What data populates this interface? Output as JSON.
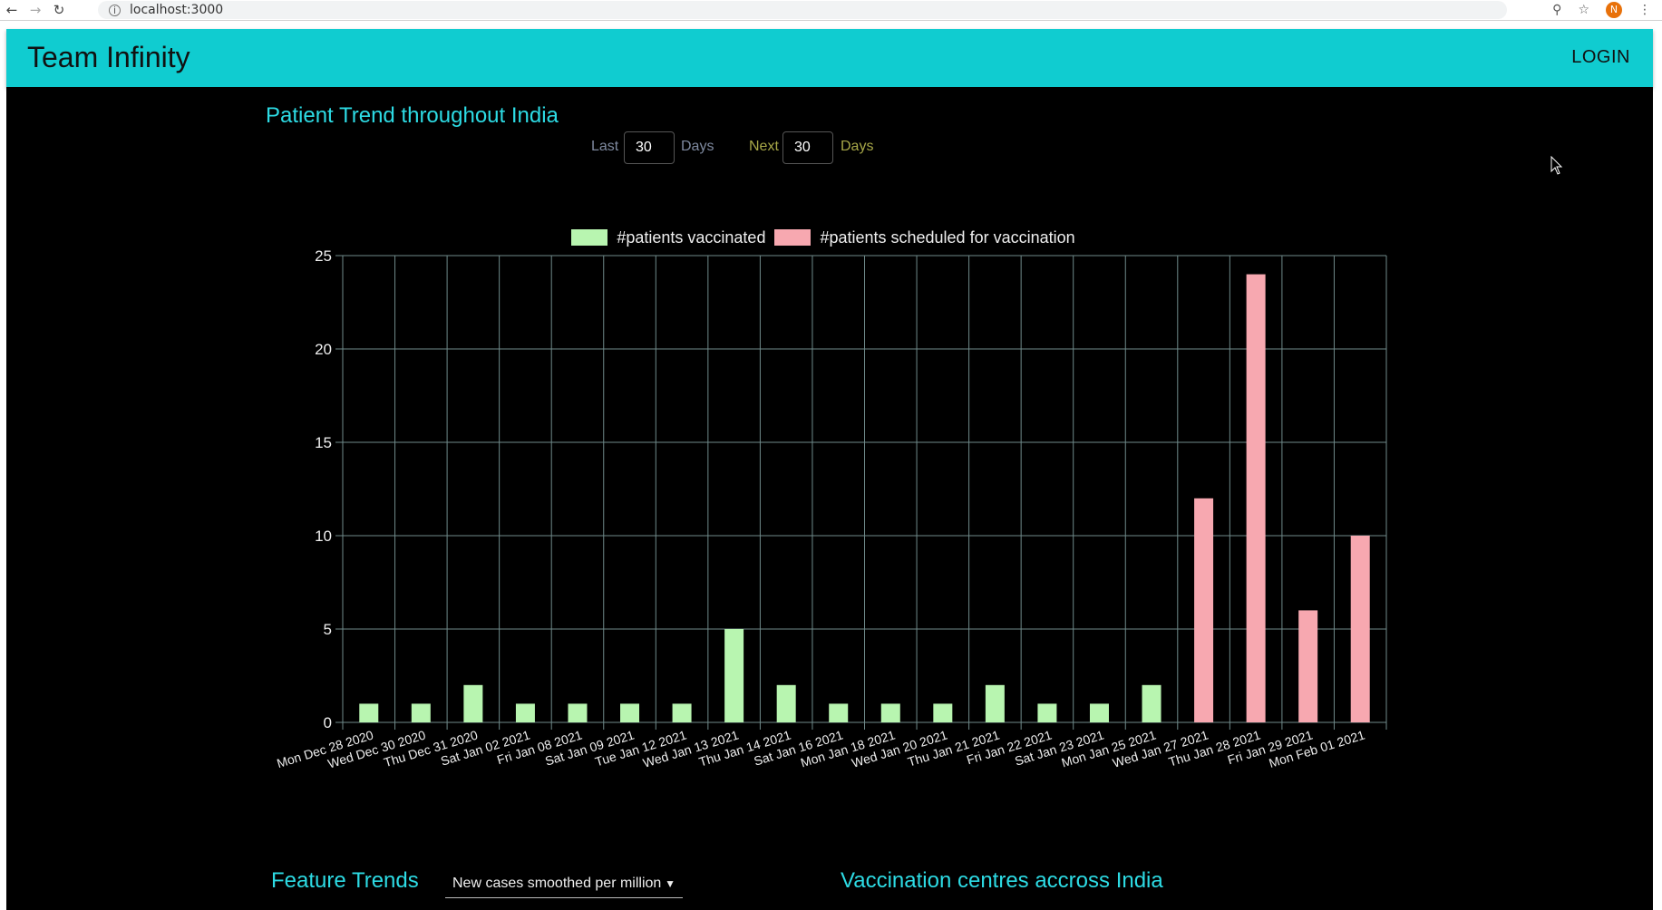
{
  "browser": {
    "url": "localhost:3000",
    "profile_initial": "N"
  },
  "header": {
    "brand": "Team Infinity",
    "login_label": "LOGIN"
  },
  "trend": {
    "title": "Patient Trend throughout India",
    "last_label": "Last",
    "last_value": "30",
    "last_unit": "Days",
    "next_label": "Next",
    "next_value": "30",
    "next_unit": "Days"
  },
  "chart_data": {
    "type": "bar",
    "categories": [
      "Mon Dec 28 2020",
      "Wed Dec 30 2020",
      "Thu Dec 31 2020",
      "Sat Jan 02 2021",
      "Fri Jan 08 2021",
      "Sat Jan 09 2021",
      "Tue Jan 12 2021",
      "Wed Jan 13 2021",
      "Thu Jan 14 2021",
      "Sat Jan 16 2021",
      "Mon Jan 18 2021",
      "Wed Jan 20 2021",
      "Thu Jan 21 2021",
      "Fri Jan 22 2021",
      "Sat Jan 23 2021",
      "Mon Jan 25 2021",
      "Wed Jan 27 2021",
      "Thu Jan 28 2021",
      "Fri Jan 29 2021",
      "Mon Feb 01 2021"
    ],
    "series": [
      {
        "name": "#patients vaccinated",
        "color": "#b8f5b0",
        "values": [
          1,
          1,
          2,
          1,
          1,
          1,
          1,
          5,
          2,
          1,
          1,
          1,
          2,
          1,
          1,
          2,
          0,
          0,
          0,
          0
        ]
      },
      {
        "name": "#patients scheduled for vaccination",
        "color": "#f7a8b0",
        "values": [
          0,
          0,
          0,
          0,
          0,
          0,
          0,
          0,
          0,
          0,
          0,
          0,
          0,
          0,
          0,
          0,
          12,
          24,
          6,
          10
        ]
      }
    ],
    "yticks": [
      0,
      5,
      10,
      15,
      20,
      25
    ],
    "ylim": [
      0,
      25
    ],
    "grid": true,
    "legend_position": "top"
  },
  "features": {
    "title": "Feature Trends",
    "select_value": "New cases smoothed per million"
  },
  "centres": {
    "title": "Vaccination centres accross India"
  },
  "colors": {
    "appbar": "#10ccd0",
    "title": "#2ddbe4",
    "last_label": "#7f8aa0",
    "next_label": "#a8a848"
  }
}
